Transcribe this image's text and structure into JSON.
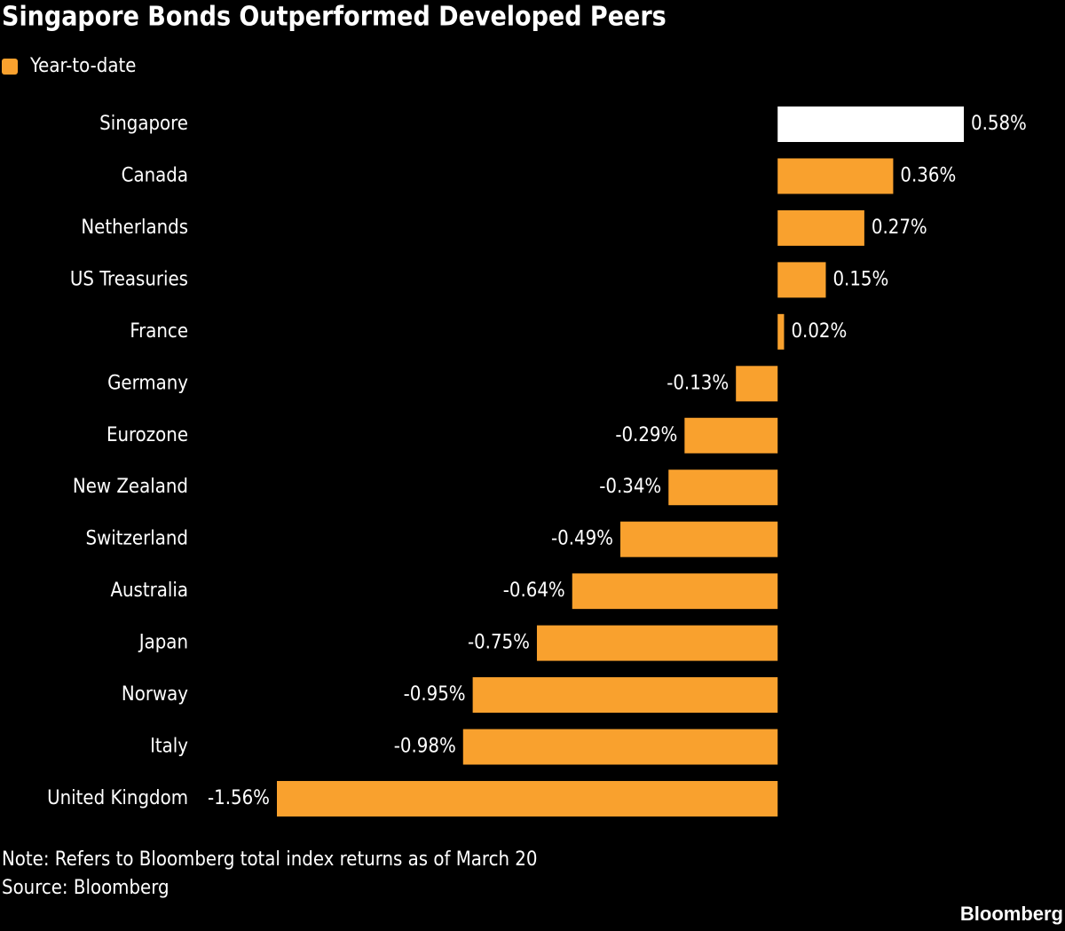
{
  "chart_data": {
    "type": "bar",
    "orientation": "horizontal",
    "title": "Singapore Bonds Outperformed Developed Peers",
    "categories": [
      "Singapore",
      "Canada",
      "Netherlands",
      "US Treasuries",
      "France",
      "Germany",
      "Eurozone",
      "New Zealand",
      "Switzerland",
      "Australia",
      "Japan",
      "Norway",
      "Italy",
      "United Kingdom"
    ],
    "series": [
      {
        "name": "Year-to-date",
        "color": "#f9a12e",
        "values": [
          0.58,
          0.36,
          0.27,
          0.15,
          0.02,
          -0.13,
          -0.29,
          -0.34,
          -0.49,
          -0.64,
          -0.75,
          -0.95,
          -0.98,
          -1.56
        ],
        "value_labels": [
          "0.58%",
          "0.36%",
          "0.27%",
          "0.15%",
          "0.02%",
          "-0.13%",
          "-0.29%",
          "-0.34%",
          "-0.49%",
          "-0.64%",
          "-0.75%",
          "-0.95%",
          "-0.98%",
          "-1.56%"
        ],
        "colors": [
          "#ffffff",
          "#f9a12e",
          "#f9a12e",
          "#f9a12e",
          "#f9a12e",
          "#f9a12e",
          "#f9a12e",
          "#f9a12e",
          "#f9a12e",
          "#f9a12e",
          "#f9a12e",
          "#f9a12e",
          "#f9a12e",
          "#f9a12e"
        ]
      }
    ],
    "note": "Note: Refers to Bloomberg total index returns as of March 20",
    "source": "Source: Bloomberg",
    "logo": "Bloomberg"
  }
}
